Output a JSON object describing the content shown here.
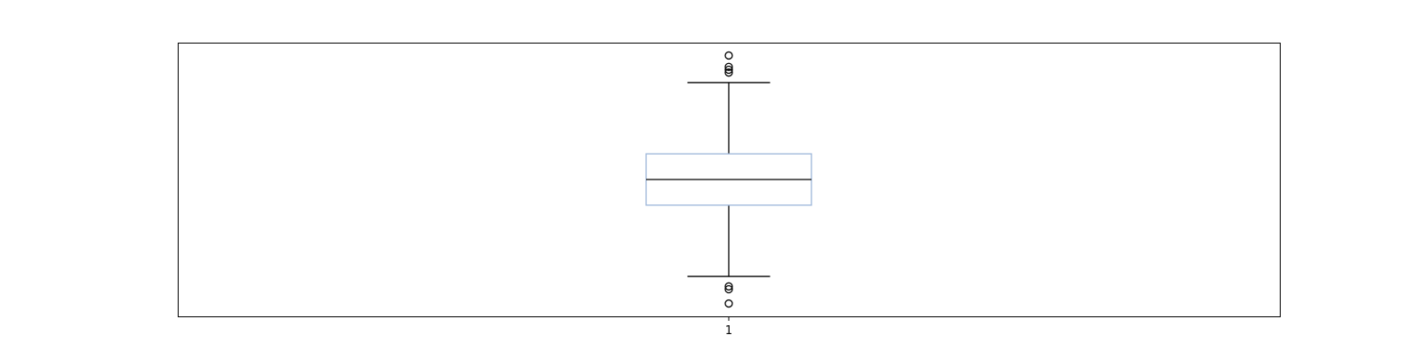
{
  "chart_data": {
    "type": "box",
    "title": "",
    "xlabel": "",
    "ylabel": "",
    "categories": [
      "1"
    ],
    "ylim": [
      -4.8,
      4.8
    ],
    "grid": false,
    "y_ticks_shown": false,
    "box_color": "#9bb5d9",
    "line_color": "#000000",
    "series": [
      {
        "whisker_low": -3.4,
        "q1": -0.9,
        "median": 0,
        "q3": 0.9,
        "whisker_high": 3.4,
        "outliers": [
          4.35,
          3.95,
          3.85,
          3.75,
          -3.75,
          -3.85,
          -4.35
        ]
      }
    ]
  }
}
